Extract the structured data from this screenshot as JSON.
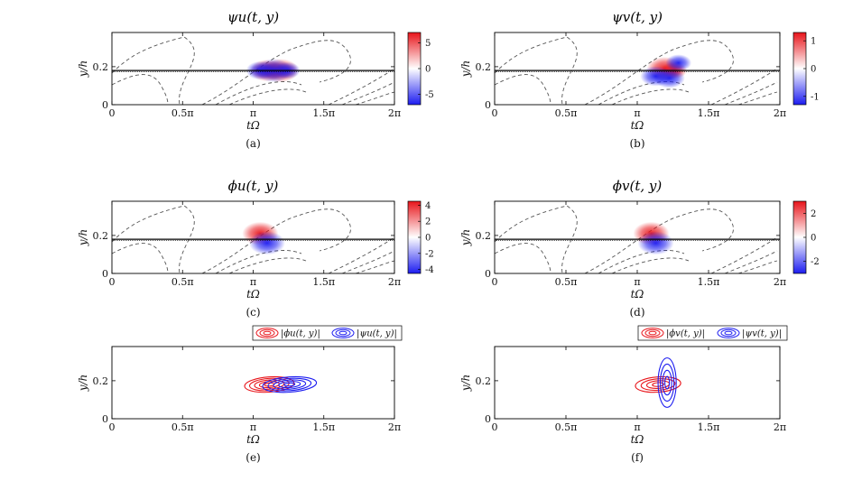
{
  "figure": {
    "colors": {
      "red": "#e8141a",
      "blue": "#1c1cf0",
      "frame": "#000000",
      "dash": "#555555"
    }
  },
  "chart_data": [
    {
      "id": "a",
      "type": "heatmap",
      "title": "ψu(t, y)",
      "caption": "(a)",
      "xlabel": "tΩ",
      "ylabel": "y/h",
      "xticks": [
        "0",
        "0.5π",
        "π",
        "1.5π",
        "2π"
      ],
      "xlim": [
        0,
        6.2832
      ],
      "yticks": [
        "0",
        "0.2"
      ],
      "ylim": [
        0,
        0.38
      ],
      "critical_layer_y": 0.18,
      "colorbar": {
        "ticks": [
          "5",
          "0",
          "-5"
        ],
        "range": [
          -7,
          7
        ]
      },
      "blobs": [
        {
          "t": 3.45,
          "y": 0.18,
          "sign": 1,
          "amp": 0.9
        },
        {
          "t": 3.75,
          "y": 0.18,
          "sign": 1,
          "amp": 1.0
        },
        {
          "t": 3.3,
          "y": 0.18,
          "sign": -1,
          "amp": 0.7
        },
        {
          "t": 3.6,
          "y": 0.18,
          "sign": -1,
          "amp": 1.0
        },
        {
          "t": 3.9,
          "y": 0.18,
          "sign": -1,
          "amp": 0.6
        }
      ]
    },
    {
      "id": "b",
      "type": "heatmap",
      "title": "ψv(t, y)",
      "caption": "(b)",
      "xlabel": "tΩ",
      "ylabel": "y/h",
      "xticks": [
        "0",
        "0.5π",
        "π",
        "1.5π",
        "2π"
      ],
      "xlim": [
        0,
        6.2832
      ],
      "yticks": [
        "0",
        "0.2"
      ],
      "ylim": [
        0,
        0.38
      ],
      "critical_layer_y": 0.18,
      "colorbar": {
        "ticks": [
          "1",
          "0",
          "-1"
        ],
        "range": [
          -1.3,
          1.3
        ]
      },
      "blobs": [
        {
          "t": 3.75,
          "y": 0.19,
          "sign": 1,
          "amp": 1.0
        },
        {
          "t": 3.95,
          "y": 0.18,
          "sign": 1,
          "amp": 0.6
        },
        {
          "t": 3.55,
          "y": 0.15,
          "sign": -1,
          "amp": 0.8
        },
        {
          "t": 3.85,
          "y": 0.14,
          "sign": -1,
          "amp": 0.8
        },
        {
          "t": 4.05,
          "y": 0.22,
          "sign": -1,
          "amp": 0.6
        }
      ]
    },
    {
      "id": "c",
      "type": "heatmap",
      "title": "ϕu(t, y)",
      "caption": "(c)",
      "xlabel": "tΩ",
      "ylabel": "y/h",
      "xticks": [
        "0",
        "0.5π",
        "π",
        "1.5π",
        "2π"
      ],
      "xlim": [
        0,
        6.2832
      ],
      "yticks": [
        "0",
        "0.2"
      ],
      "ylim": [
        0,
        0.38
      ],
      "critical_layer_y": 0.18,
      "colorbar": {
        "ticks": [
          "4",
          "2",
          "0",
          "-2",
          "-4"
        ],
        "range": [
          -4.5,
          4.5
        ]
      },
      "blobs": [
        {
          "t": 3.3,
          "y": 0.21,
          "sign": 1,
          "amp": 1.0
        },
        {
          "t": 3.45,
          "y": 0.16,
          "sign": -1,
          "amp": 1.0
        }
      ]
    },
    {
      "id": "d",
      "type": "heatmap",
      "title": "ϕv(t, y)",
      "caption": "(d)",
      "xlabel": "tΩ",
      "ylabel": "y/h",
      "xticks": [
        "0",
        "0.5π",
        "π",
        "1.5π",
        "2π"
      ],
      "xlim": [
        0,
        6.2832
      ],
      "yticks": [
        "0",
        "0.2"
      ],
      "ylim": [
        0,
        0.38
      ],
      "critical_layer_y": 0.18,
      "colorbar": {
        "ticks": [
          "2",
          "0",
          "-2"
        ],
        "range": [
          -3,
          3
        ]
      },
      "blobs": [
        {
          "t": 3.45,
          "y": 0.21,
          "sign": 1,
          "amp": 1.0
        },
        {
          "t": 3.55,
          "y": 0.16,
          "sign": -1,
          "amp": 1.0
        }
      ]
    },
    {
      "id": "e",
      "type": "line",
      "title": "",
      "caption": "(e)",
      "xlabel": "tΩ",
      "ylabel": "y/h",
      "xticks": [
        "0",
        "0.5π",
        "π",
        "1.5π",
        "2π"
      ],
      "xlim": [
        0,
        6.2832
      ],
      "yticks": [
        "0",
        "0.2"
      ],
      "ylim": [
        0,
        0.38
      ],
      "legend": [
        "|ϕu(t, y)|",
        "|ψu(t, y)|"
      ],
      "series": [
        {
          "name": "|ϕu(t, y)|",
          "color": "red",
          "cx": 3.5,
          "cy": 0.18,
          "rx": 0.55,
          "ry": 0.04,
          "rings": 5
        },
        {
          "name": "|ψu(t, y)|",
          "color": "blue",
          "cx": 3.95,
          "cy": 0.18,
          "rx": 0.6,
          "ry": 0.04,
          "rings": 5
        }
      ]
    },
    {
      "id": "f",
      "type": "line",
      "title": "",
      "caption": "(f)",
      "xlabel": "tΩ",
      "ylabel": "y/h",
      "xticks": [
        "0",
        "0.5π",
        "π",
        "1.5π",
        "2π"
      ],
      "xlim": [
        0,
        6.2832
      ],
      "yticks": [
        "0",
        "0.2"
      ],
      "ylim": [
        0,
        0.38
      ],
      "legend": [
        "|ϕv(t, y)|",
        "|ψv(t, y)|"
      ],
      "series": [
        {
          "name": "|ϕv(t, y)|",
          "color": "red",
          "cx": 3.6,
          "cy": 0.18,
          "rx": 0.5,
          "ry": 0.04,
          "rings": 4
        },
        {
          "name": "|ψv(t, y)|",
          "color": "blue",
          "cx": 3.8,
          "cy": 0.19,
          "rx": 0.2,
          "ry": 0.13,
          "rings": 4
        }
      ]
    }
  ]
}
